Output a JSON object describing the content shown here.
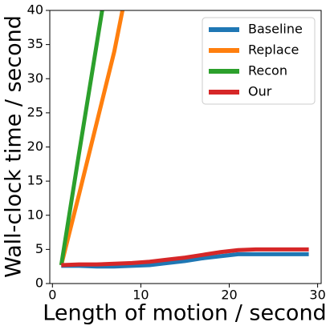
{
  "chart_data": {
    "type": "line",
    "xlabel": "Length of motion / second",
    "ylabel": "Wall-clock time / second",
    "xlim": [
      -0.3,
      30.4
    ],
    "ylim": [
      0,
      40
    ],
    "xticks": [
      0,
      10,
      20,
      30
    ],
    "yticks": [
      0,
      5,
      10,
      15,
      20,
      25,
      30,
      35,
      40
    ],
    "legend": "upper right",
    "series": [
      {
        "name": "Baseline",
        "color": "#1f77b4",
        "x": [
          1,
          3,
          5,
          7,
          9,
          11,
          13,
          15,
          17,
          19,
          21,
          23,
          25,
          27,
          29
        ],
        "values": [
          2.6,
          2.6,
          2.5,
          2.5,
          2.6,
          2.7,
          3.0,
          3.3,
          3.7,
          4.0,
          4.3,
          4.3,
          4.3,
          4.3,
          4.3
        ]
      },
      {
        "name": "Replace",
        "color": "#ff7f0e",
        "x": [
          1,
          3,
          5,
          7,
          8
        ],
        "values": [
          2.7,
          13,
          23.5,
          34,
          40.5
        ]
      },
      {
        "name": "Recon",
        "color": "#2ca02c",
        "x": [
          1,
          3,
          5,
          6
        ],
        "values": [
          2.7,
          19,
          35,
          43
        ]
      },
      {
        "name": "Our",
        "color": "#d62728",
        "x": [
          1,
          3,
          5,
          7,
          9,
          11,
          13,
          15,
          17,
          19,
          21,
          23,
          25,
          27,
          29
        ],
        "values": [
          2.7,
          2.8,
          2.8,
          2.9,
          3.0,
          3.2,
          3.5,
          3.8,
          4.2,
          4.6,
          4.9,
          5.0,
          5.0,
          5.0,
          5.0
        ]
      }
    ]
  }
}
